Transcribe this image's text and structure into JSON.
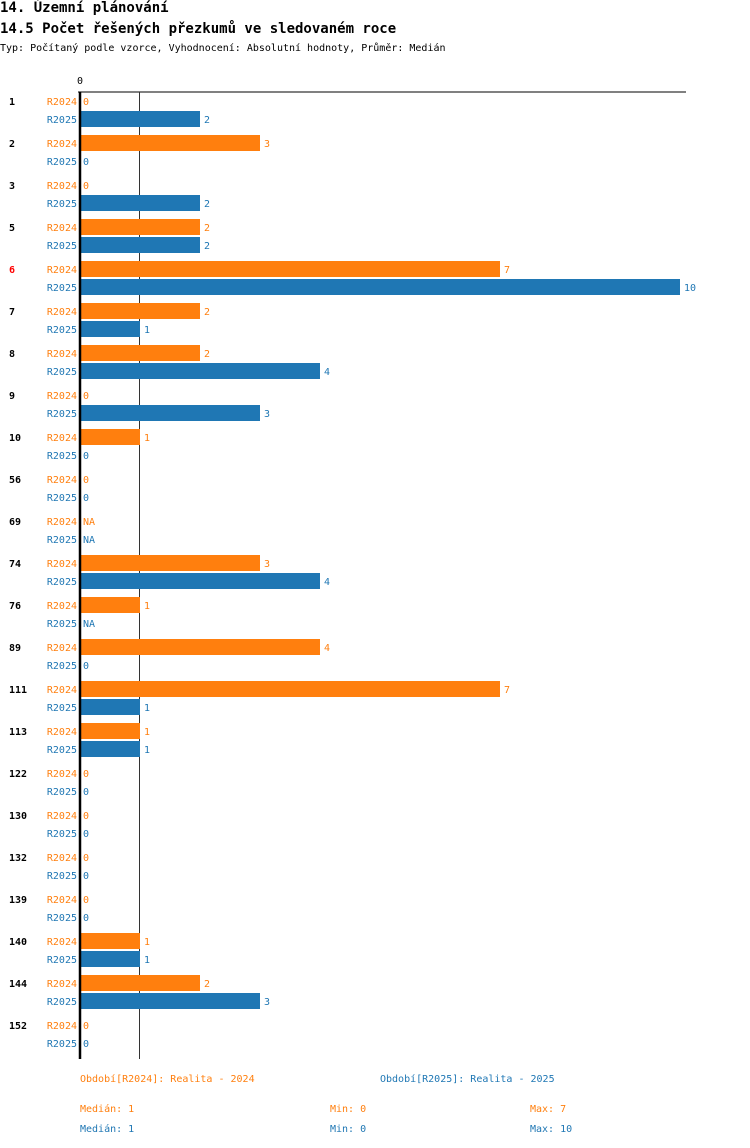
{
  "header": {
    "section": "14. Územní plánování",
    "title": "14.5 Počet řešených přezkumů ve sledovaném roce",
    "subtitle": "Typ: Počítaný podle vzorce, Vyhodnocení: Absolutní hodnoty, Průměr: Medián"
  },
  "chart_data": {
    "type": "bar",
    "orientation": "horizontal",
    "axis_zero_label": "0",
    "median_value": 1,
    "xlim": [
      0,
      10
    ],
    "colors": {
      "R2024": "#ff7f0e",
      "R2025": "#1f77b4",
      "highlight": "#ff0000"
    },
    "series_names": [
      "R2024",
      "R2025"
    ],
    "groups": [
      {
        "label": "1",
        "values": [
          0,
          2
        ]
      },
      {
        "label": "2",
        "values": [
          3,
          0
        ]
      },
      {
        "label": "3",
        "values": [
          0,
          2
        ]
      },
      {
        "label": "5",
        "values": [
          2,
          2
        ]
      },
      {
        "label": "6",
        "values": [
          7,
          10
        ],
        "highlight": true
      },
      {
        "label": "7",
        "values": [
          2,
          1
        ]
      },
      {
        "label": "8",
        "values": [
          2,
          4
        ]
      },
      {
        "label": "9",
        "values": [
          0,
          3
        ]
      },
      {
        "label": "10",
        "values": [
          1,
          0
        ]
      },
      {
        "label": "56",
        "values": [
          0,
          0
        ]
      },
      {
        "label": "69",
        "values": [
          "NA",
          "NA"
        ]
      },
      {
        "label": "74",
        "values": [
          3,
          4
        ]
      },
      {
        "label": "76",
        "values": [
          1,
          "NA"
        ]
      },
      {
        "label": "89",
        "values": [
          4,
          0
        ]
      },
      {
        "label": "111",
        "values": [
          7,
          1
        ]
      },
      {
        "label": "113",
        "values": [
          1,
          1
        ]
      },
      {
        "label": "122",
        "values": [
          0,
          0
        ]
      },
      {
        "label": "130",
        "values": [
          0,
          0
        ]
      },
      {
        "label": "132",
        "values": [
          0,
          0
        ]
      },
      {
        "label": "139",
        "values": [
          0,
          0
        ]
      },
      {
        "label": "140",
        "values": [
          1,
          1
        ]
      },
      {
        "label": "144",
        "values": [
          2,
          3
        ]
      },
      {
        "label": "152",
        "values": [
          0,
          0
        ]
      }
    ]
  },
  "legend": {
    "r2024": "Období[R2024]: Realita - 2024",
    "r2025": "Období[R2025]: Realita - 2025"
  },
  "stats": {
    "r2024": {
      "median": "Medián: 1",
      "min": "Min: 0",
      "max": "Max: 7"
    },
    "r2025": {
      "median": "Medián: 1",
      "min": "Min: 0",
      "max": "Max: 10"
    }
  }
}
